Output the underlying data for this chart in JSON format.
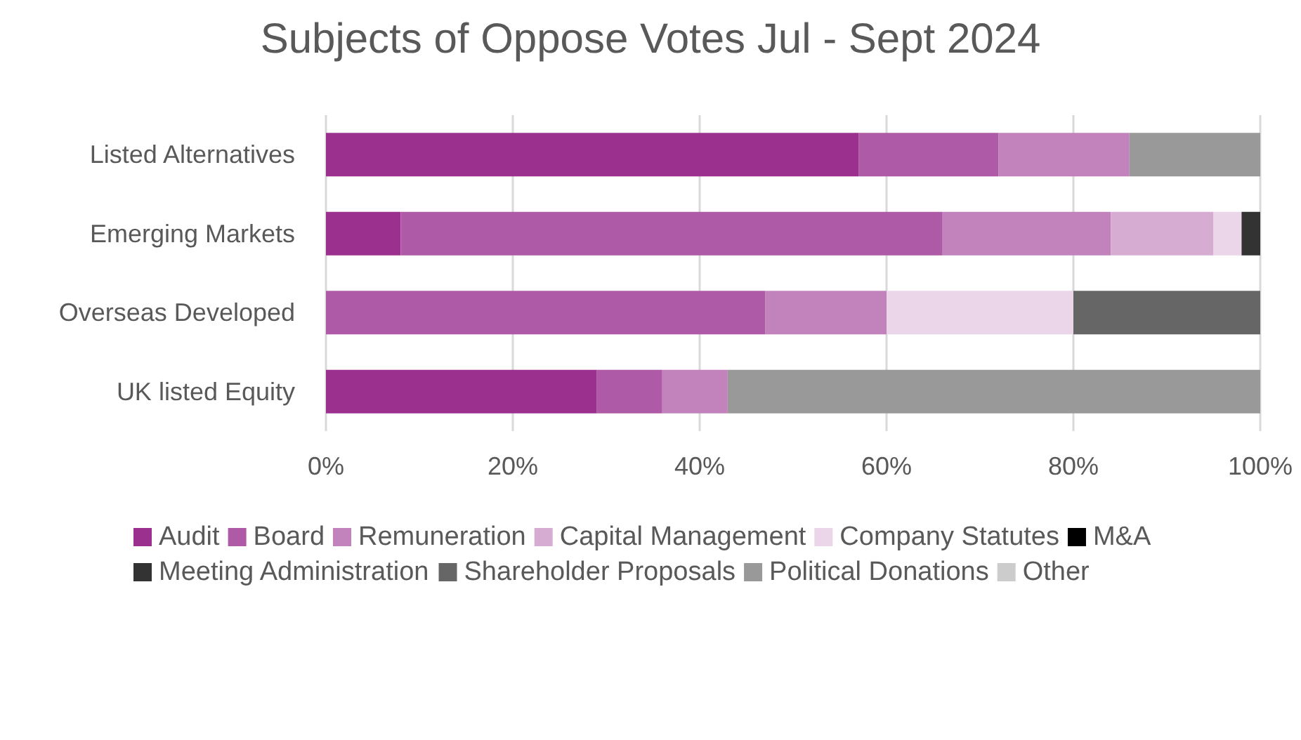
{
  "chart_data": {
    "type": "bar",
    "title": "Subjects of Oppose Votes Jul - Sept 2024",
    "orientation": "horizontal",
    "stacked": true,
    "categories": [
      "Listed Alternatives",
      "Emerging Markets",
      "Overseas Developed",
      "UK listed Equity"
    ],
    "xlim": [
      0,
      100
    ],
    "xticks": [
      {
        "value": 0,
        "label": "0%"
      },
      {
        "value": 20,
        "label": "20%"
      },
      {
        "value": 40,
        "label": "40%"
      },
      {
        "value": 60,
        "label": "60%"
      },
      {
        "value": 80,
        "label": "80%"
      },
      {
        "value": 100,
        "label": "100%"
      }
    ],
    "grid": "x",
    "legend": "bottom",
    "series": [
      {
        "name": "Audit",
        "color": "#9b308f",
        "values": [
          57,
          8,
          0,
          29
        ]
      },
      {
        "name": "Board",
        "color": "#ae5aa6",
        "values": [
          15,
          58,
          47,
          7
        ]
      },
      {
        "name": "Remuneration",
        "color": "#c283bd",
        "values": [
          14,
          18,
          13,
          7
        ]
      },
      {
        "name": "Capital Management",
        "color": "#d6acd3",
        "values": [
          0,
          11,
          0,
          0
        ]
      },
      {
        "name": "Company Statutes",
        "color": "#ebd5e9",
        "values": [
          0,
          3,
          20,
          0
        ]
      },
      {
        "name": "M&A",
        "color": "#000000",
        "values": [
          0,
          0,
          0,
          0
        ]
      },
      {
        "name": "Meeting Administration",
        "color": "#333333",
        "values": [
          0,
          2,
          0,
          0
        ]
      },
      {
        "name": "Shareholder Proposals",
        "color": "#666666",
        "values": [
          0,
          0,
          20,
          0
        ]
      },
      {
        "name": "Political Donations",
        "color": "#999999",
        "values": [
          14,
          0,
          0,
          57
        ]
      },
      {
        "name": "Other",
        "color": "#cccccc",
        "values": [
          0,
          0,
          0,
          0
        ]
      }
    ]
  }
}
